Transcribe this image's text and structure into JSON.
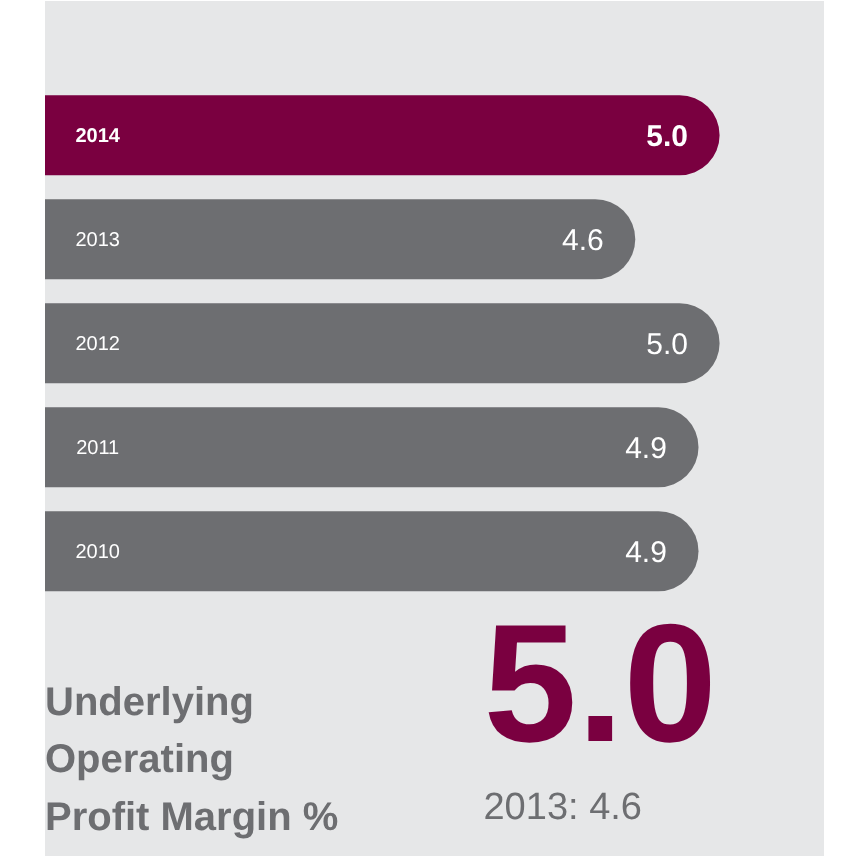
{
  "chart_data": {
    "type": "bar",
    "orientation": "horizontal",
    "title": "Underlying\nOperating\nProfit Margin %",
    "categories": [
      "2014",
      "2013",
      "2012",
      "2011",
      "2010"
    ],
    "values": [
      5.0,
      4.6,
      5.0,
      4.9,
      4.9
    ],
    "colors": [
      "#7a0040",
      "#6d6e71",
      "#6d6e71",
      "#6d6e71",
      "#6d6e71"
    ],
    "xlim": [
      1.8,
      5.5
    ],
    "value_labels": [
      "5.0",
      "4.6",
      "5.0",
      "4.9",
      "4.9"
    ],
    "tick_labels": false,
    "annotations": [
      "5.0",
      "2013: 4.6"
    ]
  }
}
